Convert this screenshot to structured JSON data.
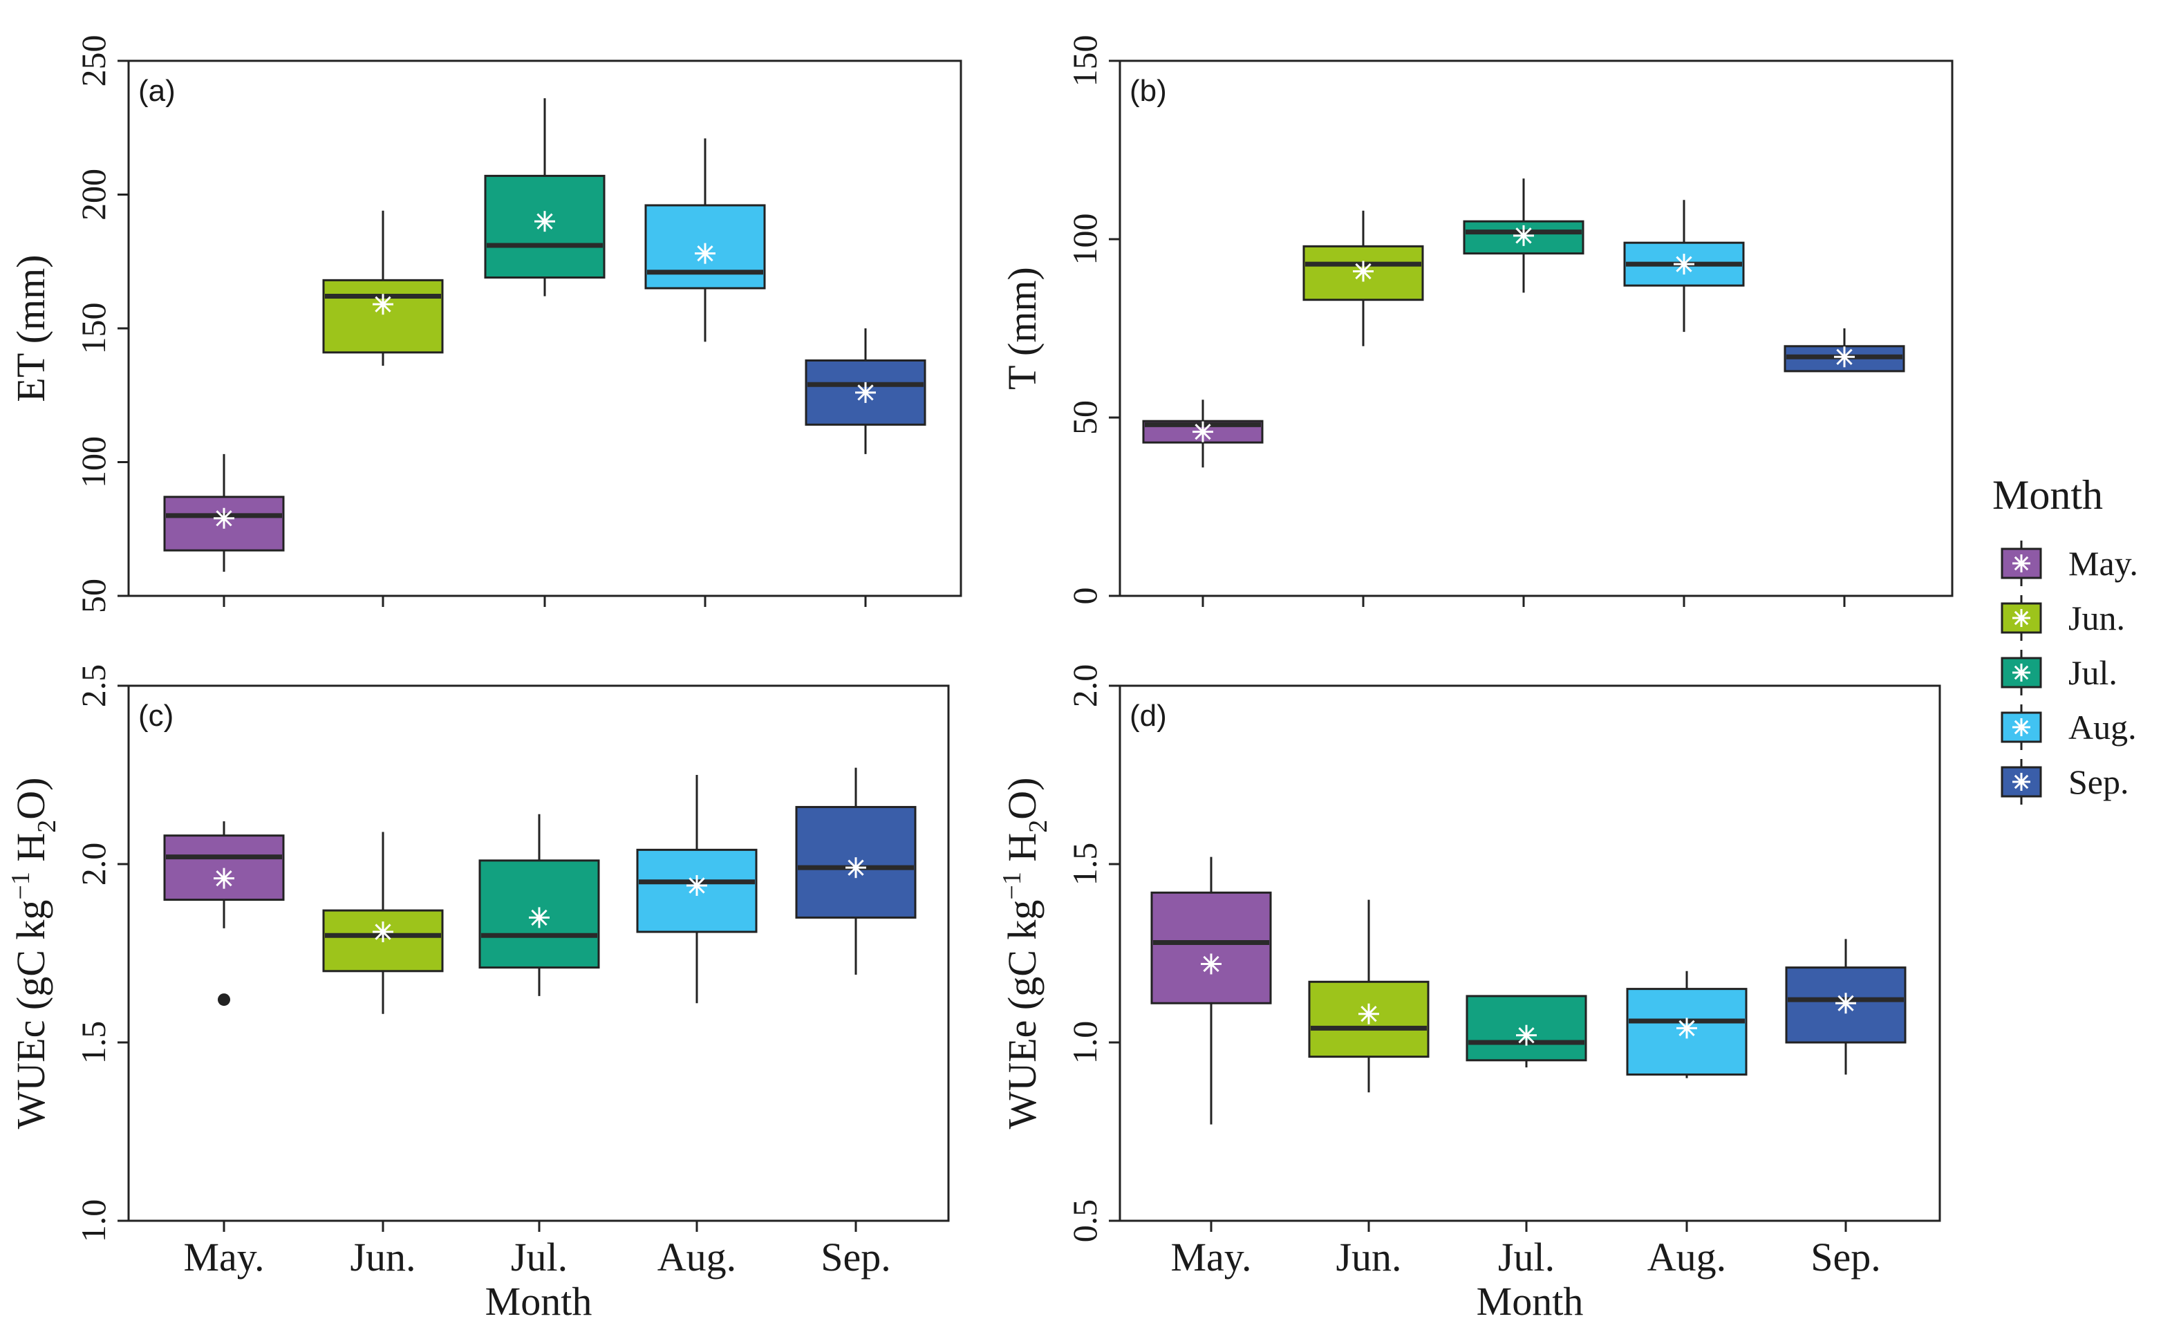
{
  "legend": {
    "title": "Month",
    "items": [
      {
        "label": "May.",
        "color": "#8e5aa6"
      },
      {
        "label": "Jun.",
        "color": "#9dc41b"
      },
      {
        "label": "Jul.",
        "color": "#12a180"
      },
      {
        "label": "Aug.",
        "color": "#41c3f2"
      },
      {
        "label": "Sep.",
        "color": "#3a5ea9"
      }
    ]
  },
  "chart_data": [
    {
      "type": "box",
      "panel": "(a)",
      "ylabel": "ET (mm)",
      "xlabel": "",
      "categories": [
        "May.",
        "Jun.",
        "Jul.",
        "Aug.",
        "Sep."
      ],
      "ylim": [
        50,
        250
      ],
      "yticks": [
        50,
        100,
        150,
        200,
        250
      ],
      "boxes": [
        {
          "min": 59,
          "q1": 67,
          "median": 80,
          "q3": 87,
          "max": 103,
          "mean": 79,
          "outliers": []
        },
        {
          "min": 136,
          "q1": 141,
          "median": 162,
          "q3": 168,
          "max": 194,
          "mean": 159,
          "outliers": []
        },
        {
          "min": 162,
          "q1": 169,
          "median": 181,
          "q3": 207,
          "max": 236,
          "mean": 190,
          "outliers": []
        },
        {
          "min": 145,
          "q1": 165,
          "median": 171,
          "q3": 196,
          "max": 221,
          "mean": 178,
          "outliers": []
        },
        {
          "min": 103,
          "q1": 114,
          "median": 129,
          "q3": 138,
          "max": 150,
          "mean": 126,
          "outliers": []
        }
      ]
    },
    {
      "type": "box",
      "panel": "(b)",
      "ylabel": "T (mm)",
      "xlabel": "",
      "categories": [
        "May.",
        "Jun.",
        "Jul.",
        "Aug.",
        "Sep."
      ],
      "ylim": [
        0,
        150
      ],
      "yticks": [
        0,
        50,
        100,
        150
      ],
      "boxes": [
        {
          "min": 36,
          "q1": 43,
          "median": 48,
          "q3": 49,
          "max": 55,
          "mean": 46,
          "outliers": []
        },
        {
          "min": 70,
          "q1": 83,
          "median": 93,
          "q3": 98,
          "max": 108,
          "mean": 91,
          "outliers": []
        },
        {
          "min": 85,
          "q1": 96,
          "median": 102,
          "q3": 105,
          "max": 117,
          "mean": 101,
          "outliers": []
        },
        {
          "min": 74,
          "q1": 87,
          "median": 93,
          "q3": 99,
          "max": 111,
          "mean": 93,
          "outliers": []
        },
        {
          "min": 63,
          "q1": 63,
          "median": 67,
          "q3": 70,
          "max": 75,
          "mean": 67,
          "outliers": []
        }
      ]
    },
    {
      "type": "box",
      "panel": "(c)",
      "ylabel": "WUEc (gC kg",
      "ylabel_sup": "−1",
      "ylabel_tail_a": " H",
      "ylabel_sub": "2",
      "ylabel_tail_b": "O)",
      "xlabel": "Month",
      "categories": [
        "May.",
        "Jun.",
        "Jul.",
        "Aug.",
        "Sep."
      ],
      "ylim": [
        1.0,
        2.5
      ],
      "yticks": [
        "1.0",
        "1.5",
        "2.0",
        "2.5"
      ],
      "boxes": [
        {
          "min": 1.82,
          "q1": 1.9,
          "median": 2.02,
          "q3": 2.08,
          "max": 2.12,
          "mean": 1.96,
          "outliers": [
            1.62
          ]
        },
        {
          "min": 1.58,
          "q1": 1.7,
          "median": 1.8,
          "q3": 1.87,
          "max": 2.09,
          "mean": 1.81,
          "outliers": []
        },
        {
          "min": 1.63,
          "q1": 1.71,
          "median": 1.8,
          "q3": 2.01,
          "max": 2.14,
          "mean": 1.85,
          "outliers": []
        },
        {
          "min": 1.61,
          "q1": 1.81,
          "median": 1.95,
          "q3": 2.04,
          "max": 2.25,
          "mean": 1.94,
          "outliers": []
        },
        {
          "min": 1.69,
          "q1": 1.85,
          "median": 1.99,
          "q3": 2.16,
          "max": 2.27,
          "mean": 1.99,
          "outliers": []
        }
      ]
    },
    {
      "type": "box",
      "panel": "(d)",
      "ylabel": "WUEe (gC kg",
      "ylabel_sup": "−1",
      "ylabel_tail_a": " H",
      "ylabel_sub": "2",
      "ylabel_tail_b": "O)",
      "xlabel": "Month",
      "categories": [
        "May.",
        "Jun.",
        "Jul.",
        "Aug.",
        "Sep."
      ],
      "ylim": [
        0.5,
        2.0
      ],
      "yticks": [
        "0.5",
        "1.0",
        "1.5",
        "2.0"
      ],
      "boxes": [
        {
          "min": 0.77,
          "q1": 1.11,
          "median": 1.28,
          "q3": 1.42,
          "max": 1.52,
          "mean": 1.22,
          "outliers": []
        },
        {
          "min": 0.86,
          "q1": 0.96,
          "median": 1.04,
          "q3": 1.17,
          "max": 1.4,
          "mean": 1.08,
          "outliers": []
        },
        {
          "min": 0.93,
          "q1": 0.95,
          "median": 1.0,
          "q3": 1.13,
          "max": 1.13,
          "mean": 1.02,
          "outliers": []
        },
        {
          "min": 0.9,
          "q1": 0.91,
          "median": 1.06,
          "q3": 1.15,
          "max": 1.2,
          "mean": 1.04,
          "outliers": []
        },
        {
          "min": 0.91,
          "q1": 1.0,
          "median": 1.12,
          "q3": 1.21,
          "max": 1.29,
          "mean": 1.11,
          "outliers": []
        }
      ]
    }
  ]
}
